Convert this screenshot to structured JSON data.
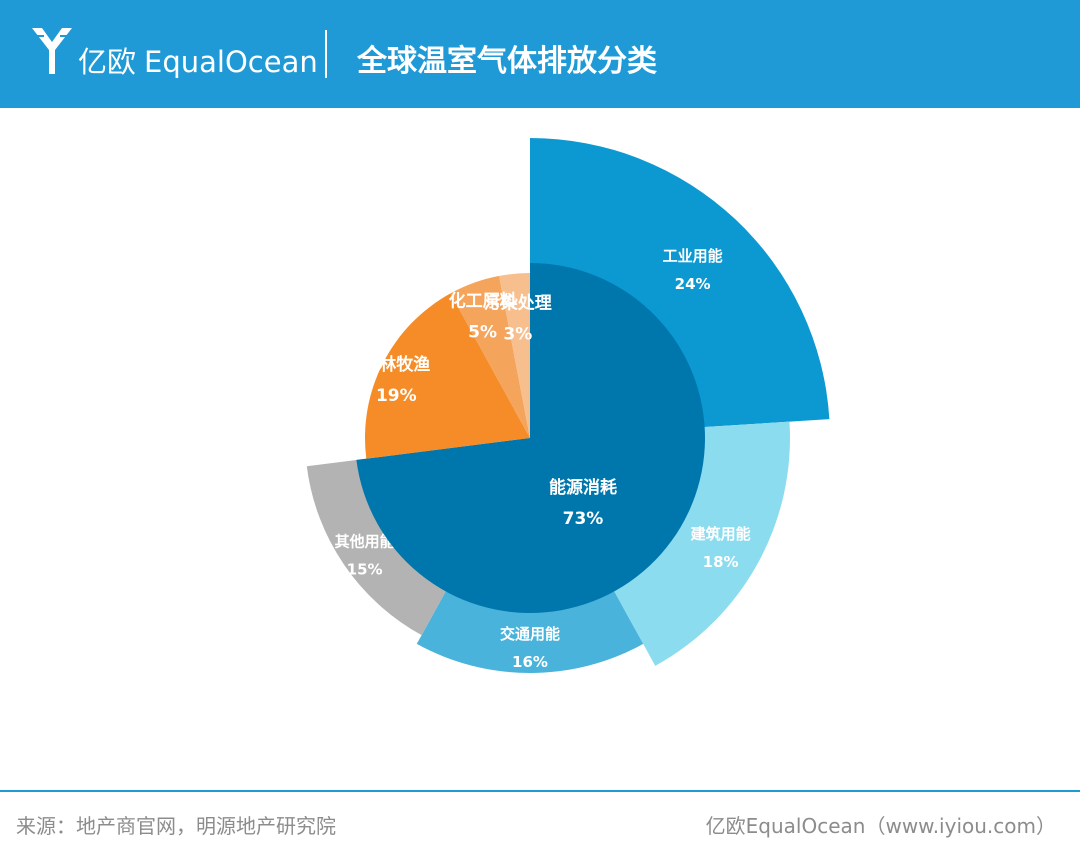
{
  "header": {
    "logo_cn": "亿欧",
    "logo_en": "EqualOcean",
    "title": "全球温室气体排放分类"
  },
  "chart_data": {
    "type": "pie",
    "title": "全球温室气体排放分类",
    "inner": [
      {
        "label": "能源消耗",
        "value": 73,
        "value_label": "73%",
        "color": "#0077ac"
      },
      {
        "label": "农林牧渔",
        "value": 19,
        "value_label": "19%",
        "color": "#f58c27"
      },
      {
        "label": "化工原料",
        "value": 5,
        "value_label": "5%",
        "color": "#f5a45c"
      },
      {
        "label": "污染处理",
        "value": 3,
        "value_label": "3%",
        "color": "#f7bf8e"
      }
    ],
    "outer": [
      {
        "label": "工业用能",
        "value": 24,
        "value_label": "24%",
        "color": "#0c99d2"
      },
      {
        "label": "建筑用能",
        "value": 18,
        "value_label": "18%",
        "color": "#8cdcf0"
      },
      {
        "label": "交通用能",
        "value": 16,
        "value_label": "16%",
        "color": "#4ab3db"
      },
      {
        "label": "其他用能",
        "value": 15,
        "value_label": "15%",
        "color": "#b3b3b3"
      }
    ]
  },
  "footer": {
    "source": "来源：地产商官网，明源地产研究院",
    "credit": "亿欧EqualOcean（www.iyiou.com）"
  }
}
